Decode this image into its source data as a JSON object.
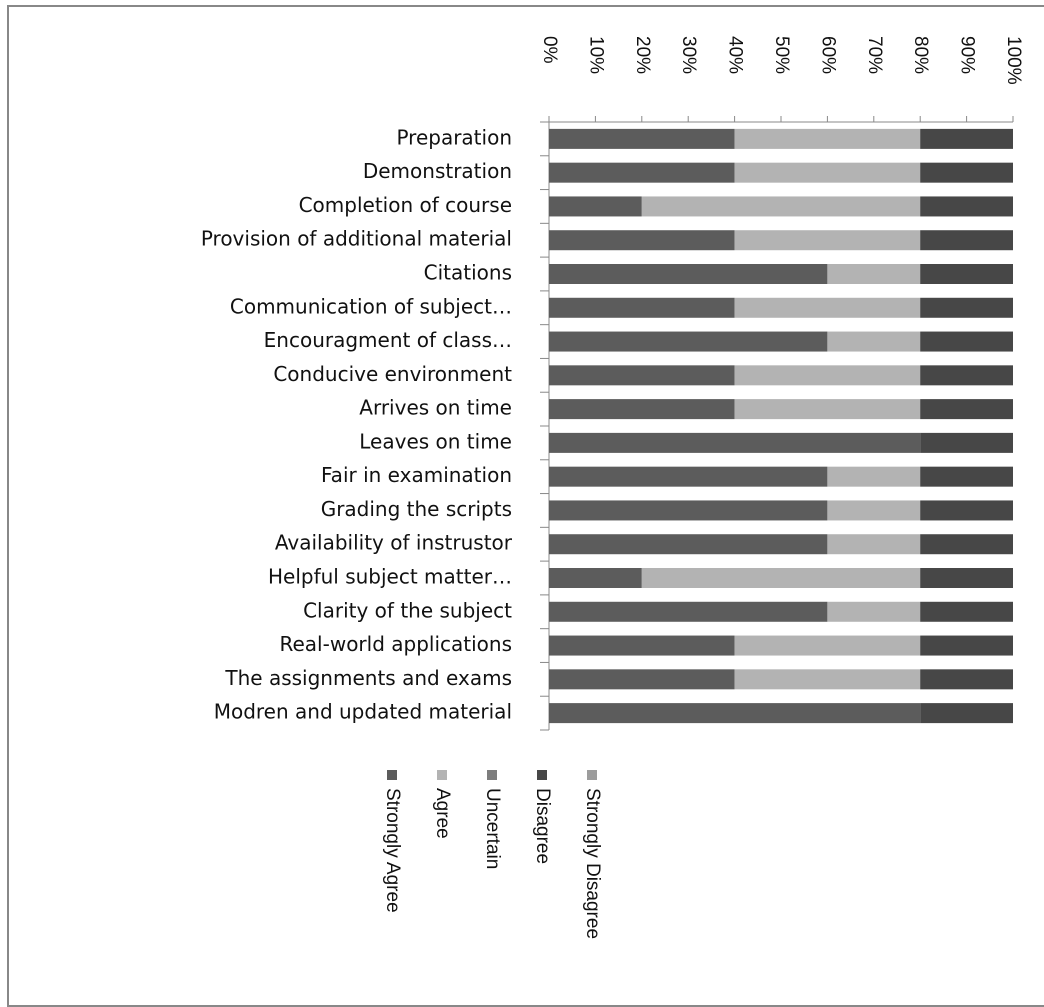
{
  "chart_data": {
    "type": "stacked-bar-horizontal",
    "categories": [
      "Preparation",
      "Demonstration",
      "Completion of course",
      "Provision of additional material",
      "Citations",
      "Communication of subject…",
      "Encouragment of class…",
      "Conducive environment",
      "Arrives on time",
      "Leaves on time",
      "Fair in examination",
      "Grading the scripts",
      "Availability of instrustor",
      "Helpful subject matter…",
      "Clarity of the subject",
      "Real-world applications",
      "The assignments and exams",
      "Modren and updated material"
    ],
    "series": [
      {
        "name": "Strongly Agree",
        "color": "#5c5c5c",
        "values": [
          40,
          40,
          20,
          40,
          60,
          40,
          60,
          40,
          40,
          80,
          60,
          60,
          60,
          20,
          60,
          40,
          40,
          80
        ]
      },
      {
        "name": "Agree",
        "color": "#b3b3b3",
        "values": [
          40,
          40,
          60,
          40,
          20,
          40,
          20,
          40,
          40,
          0,
          20,
          20,
          20,
          60,
          20,
          40,
          40,
          0
        ]
      },
      {
        "name": "Uncertain",
        "color": "#7d7d7d",
        "values": [
          0,
          0,
          0,
          0,
          0,
          0,
          0,
          0,
          0,
          0,
          0,
          0,
          0,
          0,
          0,
          0,
          0,
          0
        ]
      },
      {
        "name": "Disagree",
        "color": "#474747",
        "values": [
          20,
          20,
          20,
          20,
          20,
          20,
          20,
          20,
          20,
          20,
          20,
          20,
          20,
          20,
          20,
          20,
          20,
          20
        ]
      },
      {
        "name": "Strongly Disagree",
        "color": "#9c9c9c",
        "values": [
          0,
          0,
          0,
          0,
          0,
          0,
          0,
          0,
          0,
          0,
          0,
          0,
          0,
          0,
          0,
          0,
          0,
          0
        ]
      }
    ],
    "xlim": [
      0,
      100
    ],
    "xticks": [
      {
        "value": 0,
        "label": "0%"
      },
      {
        "value": 10,
        "label": "10%"
      },
      {
        "value": 20,
        "label": "20%"
      },
      {
        "value": 30,
        "label": "30%"
      },
      {
        "value": 40,
        "label": "40%"
      },
      {
        "value": 50,
        "label": "50%"
      },
      {
        "value": 60,
        "label": "60%"
      },
      {
        "value": 70,
        "label": "70%"
      },
      {
        "value": 80,
        "label": "80%"
      },
      {
        "value": 90,
        "label": "90%"
      },
      {
        "value": 100,
        "label": "100%"
      }
    ],
    "legend": "bottom"
  }
}
